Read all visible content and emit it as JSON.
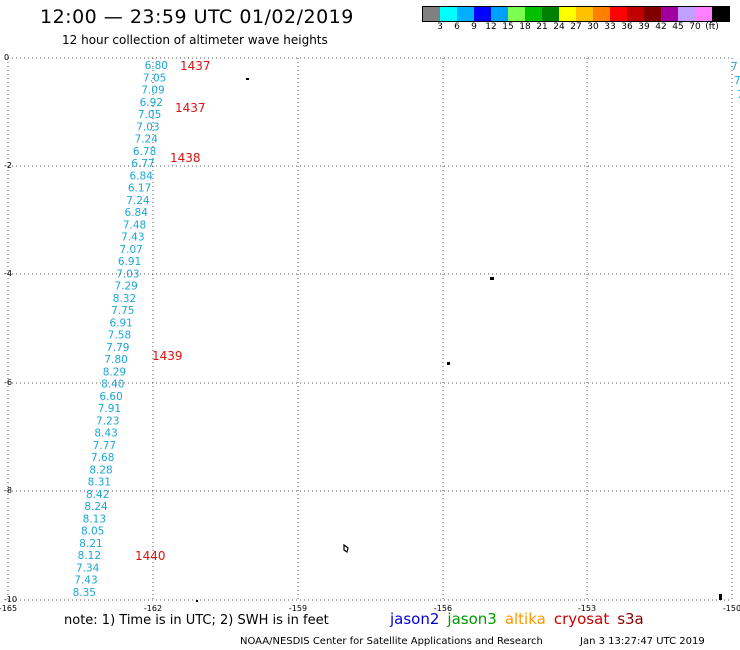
{
  "header": {
    "title": "12:00 — 23:59 UTC 01/02/2019",
    "subtitle": "12 hour collection of altimeter wave heights"
  },
  "legend": {
    "colors": [
      "#808080",
      "#00ffff",
      "#00b0ff",
      "#0000ff",
      "#00a0ff",
      "#7cff50",
      "#00c000",
      "#008000",
      "#ffff00",
      "#ffc000",
      "#ff8000",
      "#ff0000",
      "#c00000",
      "#800000",
      "#a000a0",
      "#c0a0ff",
      "#ff80ff",
      "#000000"
    ],
    "labels": [
      "3",
      "6",
      "9",
      "12",
      "15",
      "18",
      "21",
      "24",
      "27",
      "30",
      "33",
      "36",
      "39",
      "42",
      "45",
      "70",
      "(ft)"
    ]
  },
  "chart_data": {
    "type": "map",
    "x_ticks": [
      "-165",
      "-162",
      "-159",
      "-156",
      "-153",
      "-150"
    ],
    "y_ticks": [
      "0",
      "-2",
      "-4",
      "-6",
      "-8",
      "-10"
    ],
    "swh_values": [
      "6.80",
      "7.05",
      "7.09",
      "6.92",
      "7.05",
      "7.03",
      "7.24",
      "6.78",
      "6.77",
      "6.84",
      "6.17",
      "7.24",
      "6.84",
      "7.48",
      "7.43",
      "7.07",
      "6.91",
      "7.03",
      "7.29",
      "8.32",
      "7.75",
      "6.91",
      "7.58",
      "7.79",
      "7.80",
      "8.29",
      "8.40",
      "6.60",
      "7.91",
      "7.23",
      "8.43",
      "7.77",
      "7.68",
      "8.28",
      "8.31",
      "8.42",
      "8.24",
      "8.13",
      "8.05",
      "8.21",
      "8.12",
      "7.34",
      "7.43",
      "8.35"
    ],
    "time_labels": [
      "1437",
      "1437",
      "1438",
      "1439",
      "1440"
    ],
    "right_edge_values": [
      "7",
      "7",
      "7"
    ]
  },
  "footer": {
    "note": "note:  1) Time is in UTC;  2) SWH is in feet",
    "satellites": [
      {
        "name": "jason2",
        "color": "#0000dd"
      },
      {
        "name": "jason3",
        "color": "#009900"
      },
      {
        "name": "altika",
        "color": "#ff9900"
      },
      {
        "name": "cryosat",
        "color": "#cc0000"
      },
      {
        "name": "s3a",
        "color": "#880000"
      }
    ],
    "credit": "NOAA/NESDIS Center for Satellite Applications and Research",
    "timestamp": "Jan  3 13:27:47 UTC 2019"
  }
}
